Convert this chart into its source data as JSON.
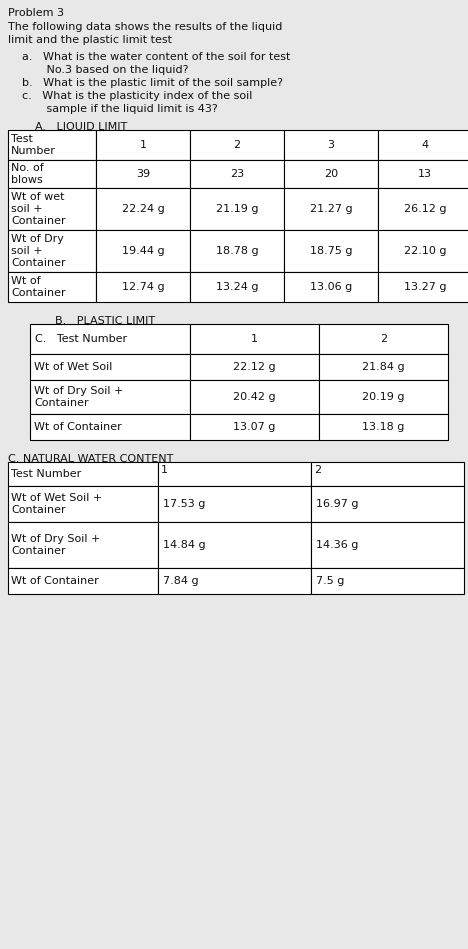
{
  "title_line1": "Problem 3",
  "title_line2": "The following data shows the results of the liquid",
  "title_line3": "limit and the plastic limit test",
  "q_a1": "a.   What is the water content of the soil for test",
  "q_a2": "       No.3 based on the liquid?",
  "q_b": "b.   What is the plastic limit of the soil sample?",
  "q_c1": "c.   What is the plasticity index of the soil",
  "q_c2": "       sample if the liquid limit is 43?",
  "section_A_title": "A.   LIQUID LIMIT",
  "ll_col_labels": [
    "Test\nNumber",
    "1",
    "2",
    "3",
    "4"
  ],
  "ll_row_labels": [
    "No. of\nblows",
    "Wt of wet\nsoil +\nContainer",
    "Wt of Dry\nsoil +\nContainer",
    "Wt of\nContainer"
  ],
  "ll_data": [
    [
      "39",
      "23",
      "20",
      "13"
    ],
    [
      "22.24 g",
      "21.19 g",
      "21.27 g",
      "26.12 g"
    ],
    [
      "19.44 g",
      "18.78 g",
      "18.75 g",
      "22.10 g"
    ],
    [
      "12.74 g",
      "13.24 g",
      "13.06 g",
      "13.27 g"
    ]
  ],
  "section_B_title": "B.   PLASTIC LIMIT",
  "pl_col_labels": [
    "C.   Test Number",
    "1",
    "2"
  ],
  "pl_row_labels": [
    "Wt of Wet Soil",
    "Wt of Dry Soil +\nContainer",
    "Wt of Container"
  ],
  "pl_data": [
    [
      "22.12 g",
      "21.84 g"
    ],
    [
      "20.42 g",
      "20.19 g"
    ],
    [
      "13.07 g",
      "13.18 g"
    ]
  ],
  "section_C_title": "C. NATURAL WATER CONTENT",
  "nwc_col_labels": [
    "Test Number",
    "1",
    "2"
  ],
  "nwc_row_labels": [
    "Wt of Wet Soil +\nContainer",
    "Wt of Dry Soil +\nContainer",
    "Wt of Container"
  ],
  "nwc_data": [
    [
      "17.53 g",
      "16.97 g"
    ],
    [
      "14.84 g",
      "14.36 g"
    ],
    [
      "7.84 g",
      "7.5 g"
    ]
  ],
  "bg_color": "#e8e8e8",
  "text_color": "#111111",
  "font_size": 8.0
}
